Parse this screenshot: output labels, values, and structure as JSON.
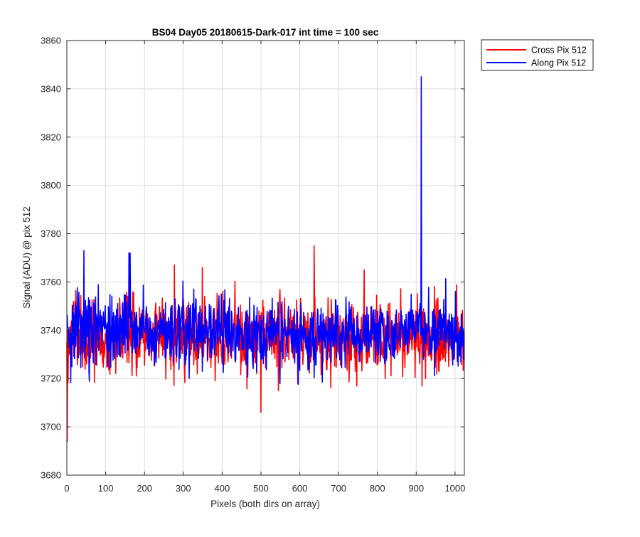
{
  "chart_data": {
    "type": "line",
    "title": "BS04 Day05 20180615-Dark-017 int time = 100 sec",
    "xlabel": "Pixels (both dirs on array)",
    "ylabel": "Signal (ADU) @ pix 512",
    "xlim": [
      0,
      1024
    ],
    "ylim": [
      3680,
      3860
    ],
    "xticks": [
      0,
      100,
      200,
      300,
      400,
      500,
      600,
      700,
      800,
      900,
      1000
    ],
    "yticks": [
      3680,
      3700,
      3720,
      3740,
      3760,
      3780,
      3800,
      3820,
      3840,
      3860
    ],
    "grid": true,
    "legend_position": "top-right, outside plot",
    "series": [
      {
        "name": "Cross Pix 512",
        "color": "#ff0000",
        "n_points": 1024,
        "x_step": 1,
        "mean": 3737,
        "approx_std": 7.5,
        "min": [
          1,
          3694
        ],
        "peaks": [
          [
            277,
            3767
          ],
          [
            349,
            3766
          ],
          [
            500,
            3706
          ],
          [
            637,
            3775
          ],
          [
            766,
            3765
          ]
        ]
      },
      {
        "name": "Along Pix 512",
        "color": "#0000ff",
        "n_points": 1024,
        "x_step": 1,
        "mean": 3739,
        "approx_std": 7.0,
        "peaks": [
          [
            44,
            3773
          ],
          [
            160,
            3772
          ],
          [
            163,
            3772
          ],
          [
            913,
            3845
          ]
        ]
      }
    ]
  }
}
